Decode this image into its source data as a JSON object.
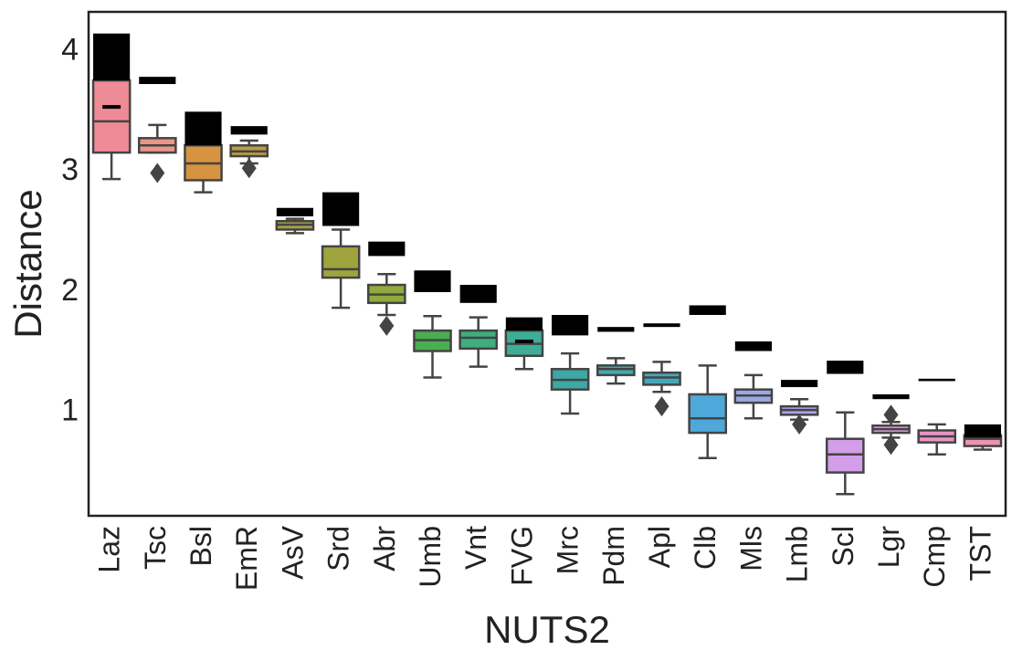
{
  "chart_data": {
    "type": "box",
    "xlabel": "NUTS2",
    "ylabel": "Distance",
    "categories": [
      "Laz",
      "Tsc",
      "Bsl",
      "EmR",
      "AsV",
      "Srd",
      "Abr",
      "Umb",
      "Vnt",
      "FVG",
      "Mrc",
      "Pdm",
      "Apl",
      "Clb",
      "Mls",
      "Lmb",
      "Scl",
      "Lgr",
      "Cmp",
      "TST"
    ],
    "colors": [
      "#ee8b97",
      "#e99686",
      "#d69340",
      "#b99c45",
      "#a8a23c",
      "#a0a43c",
      "#8fab3d",
      "#4aae4f",
      "#3fae7e",
      "#3cae97",
      "#3da8a5",
      "#40aab0",
      "#44a8bb",
      "#4ea8d9",
      "#9aa9e6",
      "#b2a0e8",
      "#d29ee8",
      "#e59add",
      "#ea94c6",
      "#ec93b0"
    ],
    "boxes": [
      {
        "whislo": 2.94,
        "q1": 3.16,
        "med": 3.42,
        "q3": 3.76,
        "whishi": 3.89,
        "fliers": []
      },
      {
        "whislo": 3.16,
        "q1": 3.16,
        "med": 3.22,
        "q3": 3.28,
        "whishi": 3.39,
        "fliers": [
          2.99
        ]
      },
      {
        "whislo": 2.83,
        "q1": 2.93,
        "med": 3.07,
        "q3": 3.22,
        "whishi": 3.31,
        "fliers": []
      },
      {
        "whislo": 3.07,
        "q1": 3.13,
        "med": 3.17,
        "q3": 3.22,
        "whishi": 3.26,
        "fliers": [
          3.03
        ]
      },
      {
        "whislo": 2.49,
        "q1": 2.52,
        "med": 2.56,
        "q3": 2.59,
        "whishi": 2.61,
        "fliers": []
      },
      {
        "whislo": 1.87,
        "q1": 2.12,
        "med": 2.19,
        "q3": 2.38,
        "whishi": 2.52,
        "fliers": []
      },
      {
        "whislo": 1.81,
        "q1": 1.91,
        "med": 1.98,
        "q3": 2.06,
        "whishi": 2.15,
        "fliers": [
          1.72
        ]
      },
      {
        "whislo": 1.29,
        "q1": 1.51,
        "med": 1.6,
        "q3": 1.68,
        "whishi": 1.8,
        "fliers": []
      },
      {
        "whislo": 1.38,
        "q1": 1.53,
        "med": 1.62,
        "q3": 1.68,
        "whishi": 1.79,
        "fliers": []
      },
      {
        "whislo": 1.36,
        "q1": 1.47,
        "med": 1.57,
        "q3": 1.68,
        "whishi": 1.71,
        "fliers": []
      },
      {
        "whislo": 0.99,
        "q1": 1.19,
        "med": 1.27,
        "q3": 1.36,
        "whishi": 1.49,
        "fliers": []
      },
      {
        "whislo": 1.24,
        "q1": 1.31,
        "med": 1.36,
        "q3": 1.39,
        "whishi": 1.45,
        "fliers": []
      },
      {
        "whislo": 1.17,
        "q1": 1.23,
        "med": 1.29,
        "q3": 1.33,
        "whishi": 1.42,
        "fliers": [
          1.05
        ]
      },
      {
        "whislo": 0.62,
        "q1": 0.83,
        "med": 0.95,
        "q3": 1.15,
        "whishi": 1.39,
        "fliers": []
      },
      {
        "whislo": 0.95,
        "q1": 1.08,
        "med": 1.14,
        "q3": 1.19,
        "whishi": 1.31,
        "fliers": []
      },
      {
        "whislo": 0.94,
        "q1": 0.98,
        "med": 1.02,
        "q3": 1.05,
        "whishi": 1.11,
        "fliers": [
          0.9
        ]
      },
      {
        "whislo": 0.32,
        "q1": 0.5,
        "med": 0.65,
        "q3": 0.78,
        "whishi": 1.0,
        "fliers": []
      },
      {
        "whislo": 0.79,
        "q1": 0.83,
        "med": 0.86,
        "q3": 0.89,
        "whishi": 0.92,
        "fliers": [
          0.98,
          0.73
        ]
      },
      {
        "whislo": 0.65,
        "q1": 0.75,
        "med": 0.8,
        "q3": 0.85,
        "whishi": 0.9,
        "fliers": []
      },
      {
        "whislo": 0.69,
        "q1": 0.72,
        "med": 0.78,
        "q3": 0.81,
        "whishi": 0.83,
        "fliers": []
      }
    ],
    "bands": [
      [
        3.76,
        4.15
      ],
      [
        3.73,
        3.79
      ],
      [
        3.22,
        3.5
      ],
      [
        3.31,
        3.38
      ],
      [
        2.63,
        2.7
      ],
      [
        2.55,
        2.83
      ],
      [
        2.3,
        2.42
      ],
      [
        2.0,
        2.18
      ],
      [
        1.91,
        2.06
      ],
      [
        1.68,
        1.79
      ],
      [
        1.64,
        1.81
      ],
      [
        1.67,
        1.71
      ],
      [
        1.71,
        1.74
      ],
      [
        1.81,
        1.89
      ],
      [
        1.51,
        1.59
      ],
      [
        1.21,
        1.27
      ],
      [
        1.32,
        1.43
      ],
      [
        1.11,
        1.15
      ],
      [
        1.26,
        1.28
      ],
      [
        0.79,
        0.9
      ]
    ],
    "band_color": "#000000",
    "means": [
      3.54,
      null,
      null,
      null,
      null,
      null,
      null,
      null,
      null,
      1.59,
      null,
      null,
      null,
      null,
      null,
      null,
      null,
      null,
      null,
      null
    ],
    "ylim": [
      0.14,
      4.33
    ],
    "yticks": [
      1,
      2,
      3,
      4
    ],
    "grid": false
  }
}
